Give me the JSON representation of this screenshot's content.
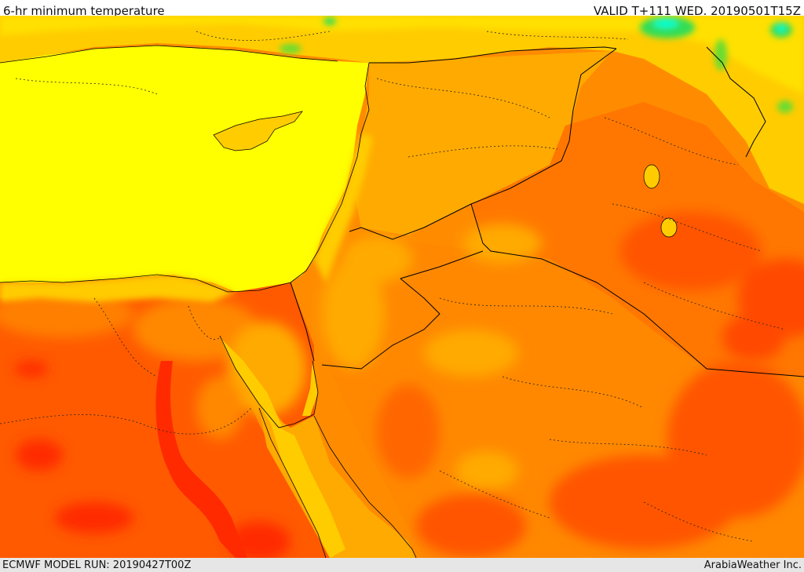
{
  "header": {
    "title": "6-hr minimum temperature",
    "valid": "VALID T+111 WED. 20190501T15Z"
  },
  "footer": {
    "model_run": "ECMWF MODEL RUN: 20190427T00Z",
    "credit": "ArabiaWeather Inc."
  },
  "colors": {
    "sea_yellow": "#ffff00",
    "warm_light": "#ffcc00",
    "warm_mid": "#ffaa00",
    "warm_orange": "#ff8800",
    "hot": "#ff5500",
    "hottest": "#ff2a00",
    "cool_green": "#00dd66",
    "cool_cyan": "#00ffbb"
  }
}
